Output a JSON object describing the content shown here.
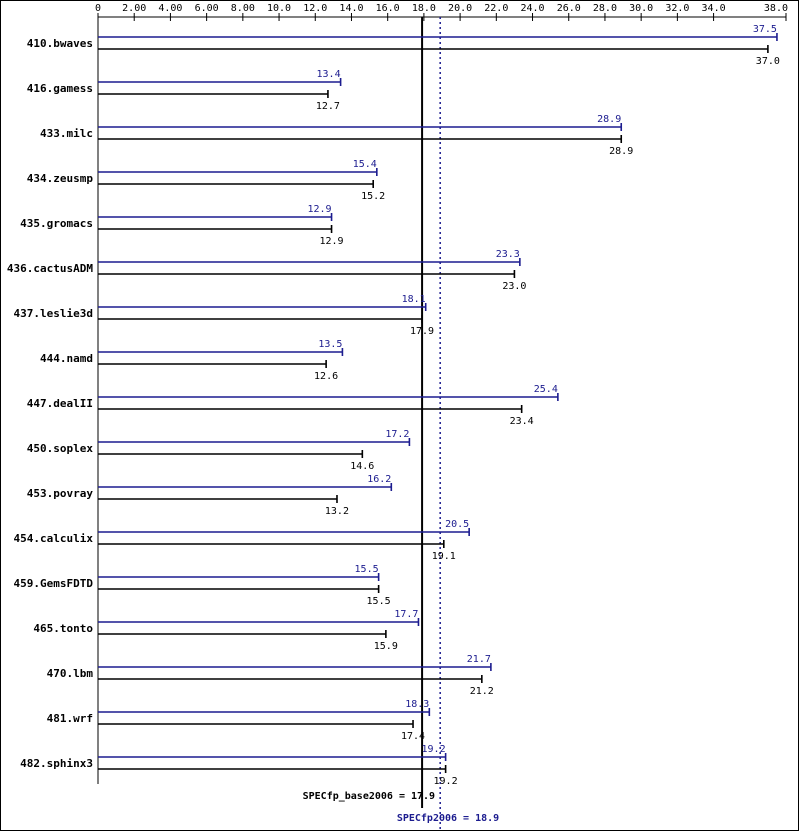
{
  "colors": {
    "peak": "#1c1c8f",
    "base": "#000000"
  },
  "chart_data": {
    "type": "bar",
    "orientation": "horizontal",
    "xlim": [
      0,
      38.0
    ],
    "ticks": [
      "0",
      "2.00",
      "4.00",
      "6.00",
      "8.00",
      "10.0",
      "12.0",
      "14.0",
      "16.0",
      "18.0",
      "20.0",
      "22.0",
      "24.0",
      "26.0",
      "28.0",
      "30.0",
      "32.0",
      "34.0",
      "38.0"
    ],
    "tick_values": [
      0,
      2,
      4,
      6,
      8,
      10,
      12,
      14,
      16,
      18,
      20,
      22,
      24,
      26,
      28,
      30,
      32,
      34,
      38
    ],
    "categories": [
      "410.bwaves",
      "416.gamess",
      "433.milc",
      "434.zeusmp",
      "435.gromacs",
      "436.cactusADM",
      "437.leslie3d",
      "444.namd",
      "447.dealII",
      "450.soplex",
      "453.povray",
      "454.calculix",
      "459.GemsFDTD",
      "465.tonto",
      "470.lbm",
      "481.wrf",
      "482.sphinx3"
    ],
    "series": [
      {
        "key": "peak",
        "values": [
          37.5,
          13.4,
          28.9,
          15.4,
          12.9,
          23.3,
          18.1,
          13.5,
          25.4,
          17.2,
          16.2,
          20.5,
          15.5,
          17.7,
          21.7,
          18.3,
          19.2
        ]
      },
      {
        "key": "base",
        "values": [
          37.0,
          12.7,
          28.9,
          15.2,
          12.9,
          23.0,
          17.9,
          12.6,
          23.4,
          14.6,
          13.2,
          19.1,
          15.5,
          15.9,
          21.2,
          17.4,
          19.2
        ]
      }
    ],
    "reference_lines": [
      {
        "key": "base",
        "value": 17.9,
        "label": "SPECfp_base2006 = 17.9",
        "style": "solid"
      },
      {
        "key": "peak",
        "value": 18.9,
        "label": "SPECfp2006 = 18.9",
        "style": "dotted"
      }
    ]
  }
}
